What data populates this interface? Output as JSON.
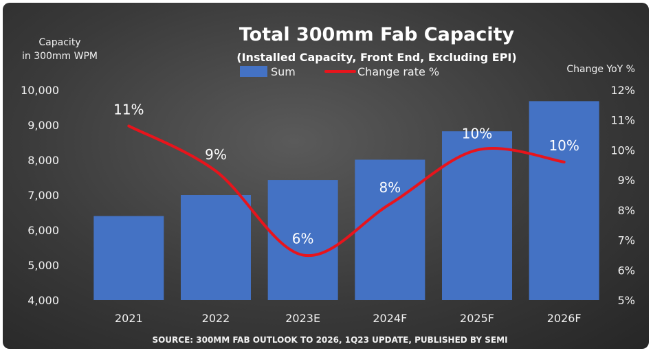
{
  "chart_data": {
    "type": "bar",
    "title": "Total 300mm Fab Capacity",
    "subtitle": "(Installed Capacity, Front End, Excluding EPI)",
    "ylabel_left": [
      "Capacity",
      "in 300mm WPM"
    ],
    "ylabel_right": "Change YoY %",
    "source": "SOURCE: 300MM FAB OUTLOOK TO 2026, 1Q23 UPDATE, PUBLISHED BY SEMI",
    "categories": [
      "2021",
      "2022",
      "2023E",
      "2024F",
      "2025F",
      "2026F"
    ],
    "ylim_left": [
      4000,
      10000
    ],
    "left_ticks": [
      "4,000",
      "5,000",
      "6,000",
      "7,000",
      "8,000",
      "9,000",
      "10,000"
    ],
    "ylim_right": [
      5,
      12
    ],
    "right_ticks": [
      "5%",
      "6%",
      "7%",
      "8%",
      "9%",
      "10%",
      "11%",
      "12%"
    ],
    "legend_position": "top",
    "grid": false,
    "series": [
      {
        "name": "Sum",
        "type": "bar",
        "color": "#4472c4",
        "values": [
          6400,
          7000,
          7430,
          8010,
          8820,
          9680
        ]
      },
      {
        "name": "Change rate %",
        "type": "line",
        "color": "#e8141c",
        "values": [
          10.8,
          9.3,
          6.5,
          8.2,
          10.0,
          9.6
        ]
      }
    ],
    "data_labels": [
      "11%",
      "9%",
      "6%",
      "8%",
      "10%",
      "10%"
    ]
  }
}
